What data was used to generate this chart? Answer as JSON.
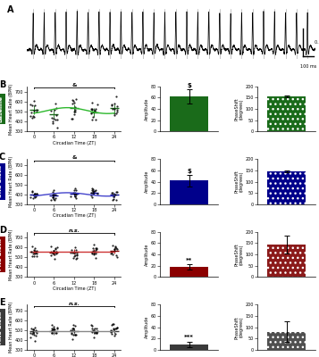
{
  "row_labels": [
    "Baseline",
    "SNS Block",
    "PNS Block",
    "ANS Block"
  ],
  "row_label_bg_colors": [
    "#1a6b1a",
    "#00008b",
    "#8b0000",
    "#3a3a3a"
  ],
  "scatter_fit_colors": [
    "#2db82d",
    "#4444cc",
    "#cc3333",
    "#888888"
  ],
  "scatter_mean_colors": [
    "#1a6b1a",
    "#00008b",
    "#8b0000",
    "#3a3a3a"
  ],
  "amp_bar_colors": [
    "#1a6b1a",
    "#00008b",
    "#8b0000",
    "#3a3a3a"
  ],
  "phase_bar_colors": [
    "#1a6b1a",
    "#00008b",
    "#8b1a1a",
    "#505050"
  ],
  "scatter_means": [
    [
      520,
      475,
      535,
      495,
      535
    ],
    [
      395,
      385,
      405,
      420,
      395
    ],
    [
      555,
      552,
      558,
      558,
      565
    ],
    [
      490,
      488,
      492,
      490,
      490
    ]
  ],
  "scatter_stds": [
    55,
    28,
    32,
    38
  ],
  "amp_values": [
    62,
    42,
    18,
    10
  ],
  "amp_errors": [
    12,
    10,
    4,
    5
  ],
  "phase_values": [
    155,
    145,
    145,
    80
  ],
  "phase_errors": [
    5,
    5,
    40,
    45
  ],
  "significance_scatter": [
    "&",
    "&",
    "n.s.",
    "n.s."
  ],
  "significance_amp": [
    "$",
    "$",
    "**",
    "***"
  ],
  "panel_letters": [
    "B",
    "C",
    "D",
    "E"
  ],
  "xticks": [
    0,
    6,
    12,
    18,
    24
  ],
  "scatter_ylim": [
    300,
    760
  ],
  "scatter_yticks": [
    300,
    400,
    500,
    600,
    700
  ],
  "amp_ylim": [
    0,
    80
  ],
  "amp_yticks": [
    0,
    20,
    40,
    60,
    80
  ],
  "phase_ylim": [
    0,
    200
  ],
  "phase_yticks": [
    0,
    50,
    100,
    150,
    200
  ]
}
